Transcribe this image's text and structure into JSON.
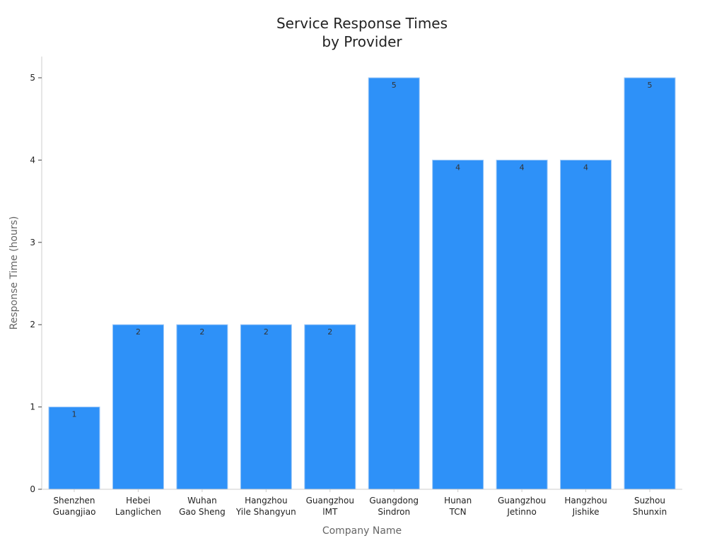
{
  "chart_data": {
    "type": "bar",
    "title": [
      "Service Response Times",
      "by Provider"
    ],
    "xlabel": "Company Name",
    "ylabel": "Response Time (hours)",
    "categories": [
      [
        "Shenzhen",
        "Guangjiao"
      ],
      [
        "Hebei",
        "Langlichen"
      ],
      [
        "Wuhan",
        "Gao Sheng"
      ],
      [
        "Hangzhou",
        "Yile Shangyun"
      ],
      [
        "Guangzhou",
        "lMT"
      ],
      [
        "Guangdong",
        "Sindron"
      ],
      [
        "Hunan",
        "TCN"
      ],
      [
        "Guangzhou",
        "Jetinno"
      ],
      [
        "Hangzhou",
        "Jishike"
      ],
      [
        "Suzhou",
        "Shunxin"
      ]
    ],
    "values": [
      1,
      2,
      2,
      2,
      2,
      5,
      4,
      4,
      4,
      5
    ],
    "yticks": [
      0,
      1,
      2,
      3,
      4,
      5
    ],
    "ylim": [
      0,
      5.25
    ],
    "grid": false,
    "bar_color": "#2E91F8",
    "bar_edge_color": "#9fc9f7",
    "data_labels": true
  }
}
